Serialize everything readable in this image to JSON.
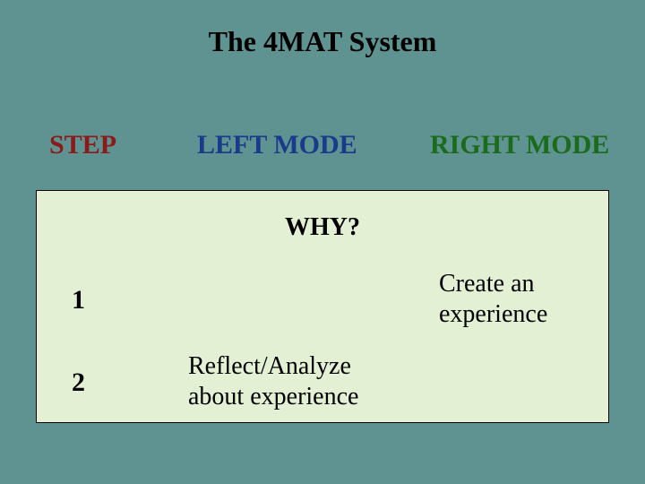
{
  "title": "The 4MAT System",
  "headers": {
    "step": {
      "text": "STEP",
      "color": "#8b1a1a"
    },
    "left": {
      "text": "LEFT MODE",
      "color": "#1a3a8b"
    },
    "right": {
      "text": "RIGHT MODE",
      "color": "#1a6b1a"
    }
  },
  "box": {
    "background_color": "#e4f0d4",
    "border_color": "#000000"
  },
  "why_label": "WHY?",
  "rows": [
    {
      "step": "1",
      "left_mode": "",
      "right_mode": "Create an\nexperience"
    },
    {
      "step": "2",
      "left_mode": "Reflect/Analyze\nabout experience",
      "right_mode": ""
    }
  ],
  "background_color": "#5f9391",
  "text_color": "#000000",
  "font_family": "Times New Roman"
}
